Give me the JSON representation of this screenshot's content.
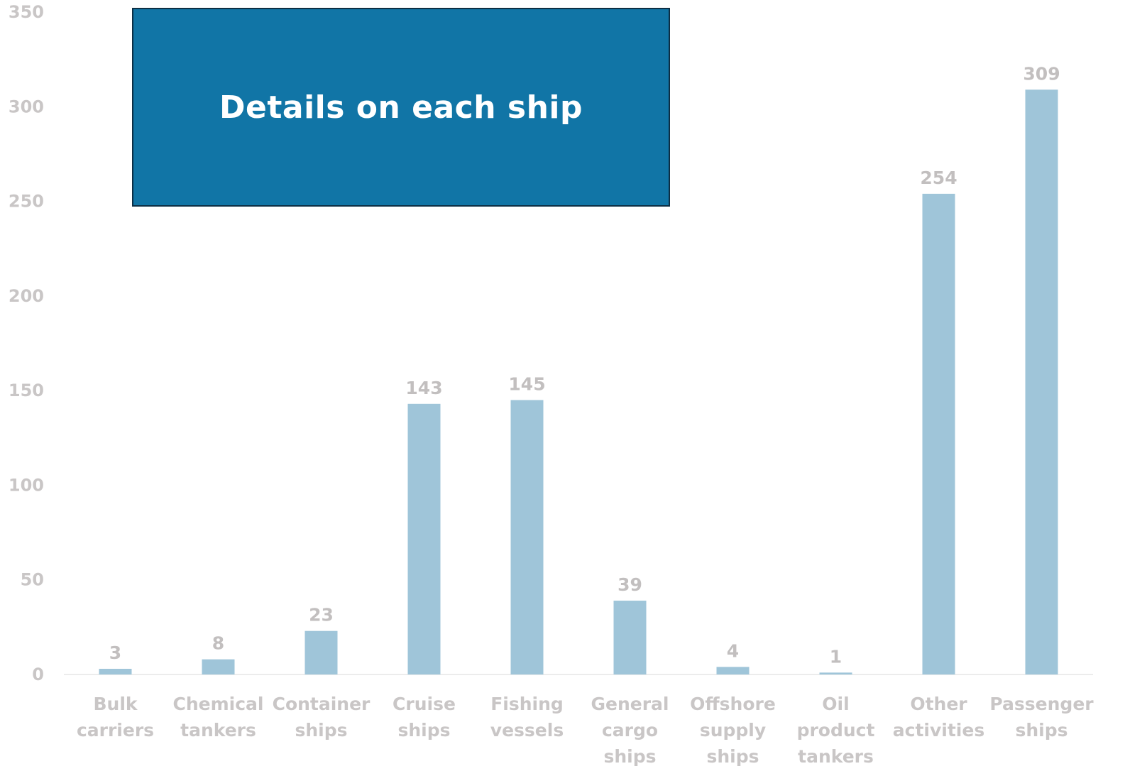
{
  "overlay": {
    "button_label": "Details on each ship",
    "background_color": "#1175a6",
    "border_color": "#0d2f45"
  },
  "chart_data": {
    "type": "bar",
    "categories": [
      [
        "Bulk",
        "carriers"
      ],
      [
        "Chemical",
        "tankers"
      ],
      [
        "Container",
        "ships"
      ],
      [
        "Cruise",
        "ships"
      ],
      [
        "Fishing",
        "vessels"
      ],
      [
        "General",
        "cargo",
        "ships"
      ],
      [
        "Offshore",
        "supply",
        "ships"
      ],
      [
        "Oil",
        "product",
        "tankers"
      ],
      [
        "Other",
        "activities"
      ],
      [
        "Passenger",
        "ships"
      ]
    ],
    "values": [
      3,
      8,
      23,
      143,
      145,
      39,
      4,
      1,
      254,
      309
    ],
    "title": "",
    "xlabel": "",
    "ylabel": "",
    "ylim": [
      0,
      350
    ],
    "yticks": [
      0,
      50,
      100,
      150,
      200,
      250,
      300,
      350
    ],
    "grid": false,
    "data_labels": true,
    "bar_color": "#9fc5d9"
  }
}
